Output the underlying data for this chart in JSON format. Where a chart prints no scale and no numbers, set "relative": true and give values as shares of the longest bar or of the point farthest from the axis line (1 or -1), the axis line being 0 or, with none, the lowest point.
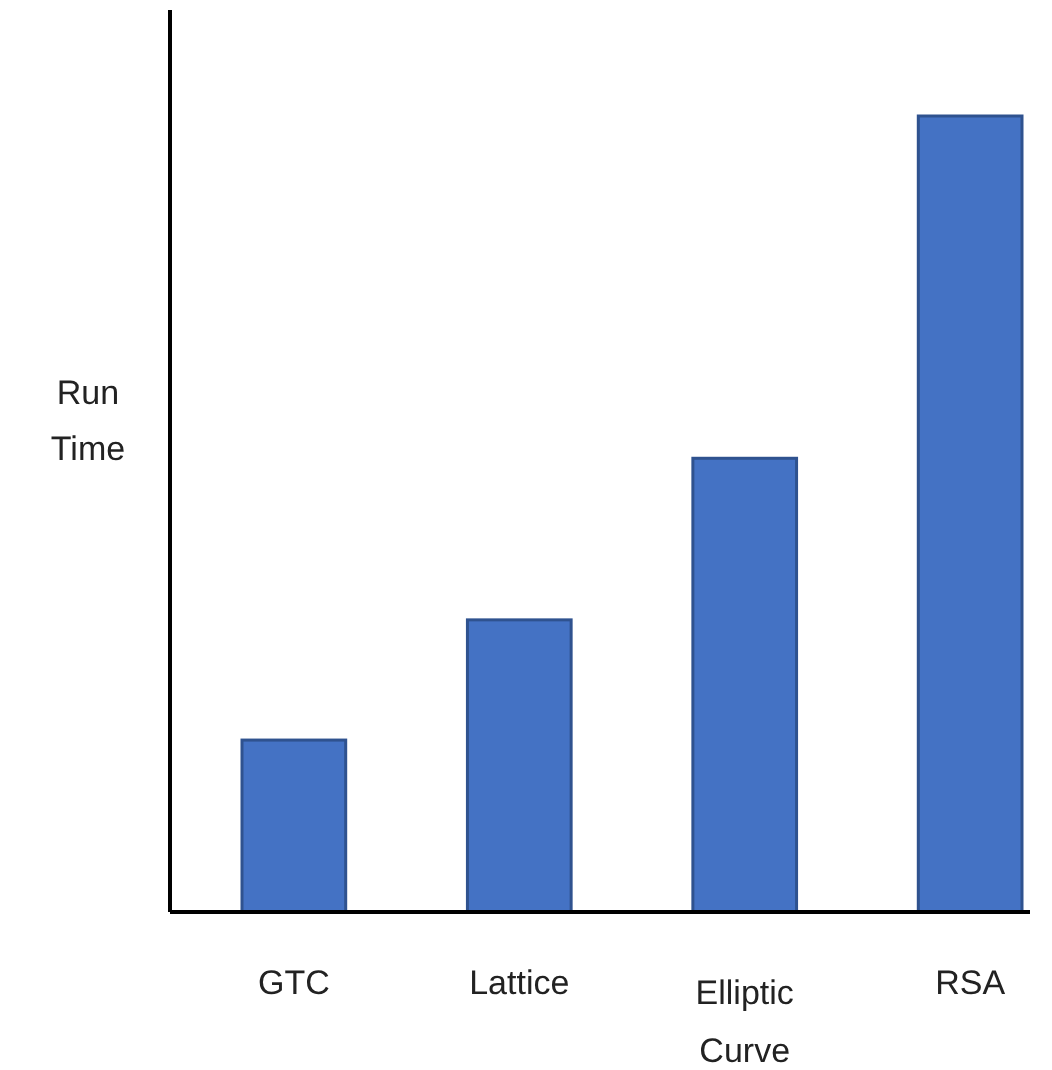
{
  "chart_data": {
    "type": "bar",
    "relative": true,
    "ylabel": "Run Time",
    "categories": [
      "GTC",
      "Lattice",
      "Elliptic Curve",
      "RSA"
    ],
    "values": [
      0.216,
      0.367,
      0.57,
      1
    ],
    "color": "#4472c4"
  }
}
